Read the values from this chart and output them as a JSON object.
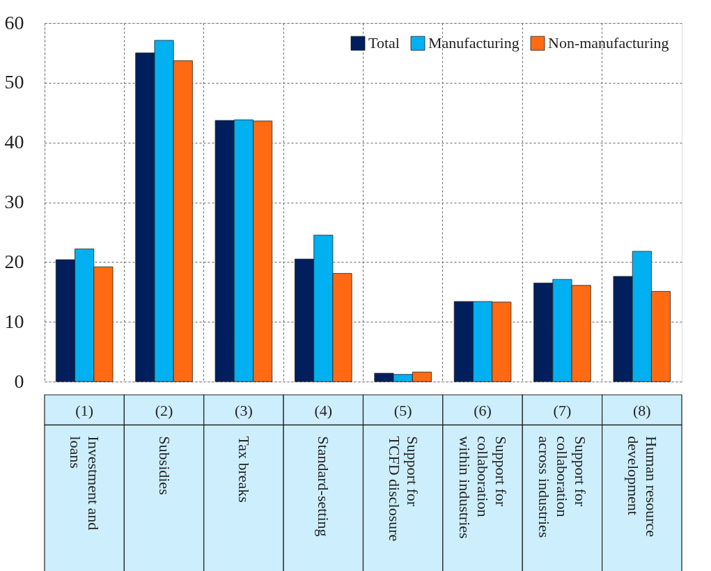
{
  "chart_data": {
    "type": "bar",
    "categories": [
      "(1) Investment and\nloans",
      "(2) Subsidies",
      "(3) Tax breaks",
      "(4) Standard-setting",
      "(5) Support for\nTCFD disclosure",
      "(6) Support for\ncollaboration\nwithin industries",
      "(7) Support for\ncollaboration\nacross industries",
      "(8) Human resource\ndevelopment"
    ],
    "series": [
      {
        "name": "Total",
        "color": "#001f5c",
        "values": [
          20.4,
          55.0,
          43.7,
          20.5,
          1.4,
          13.4,
          16.5,
          17.6
        ]
      },
      {
        "name": "Manufacturing",
        "color": "#00b0f0",
        "values": [
          22.2,
          57.1,
          43.8,
          24.5,
          1.2,
          13.4,
          17.1,
          21.8
        ]
      },
      {
        "name": "Non-manufacturing",
        "color": "#ff6a13",
        "values": [
          19.2,
          53.7,
          43.6,
          18.1,
          1.6,
          13.3,
          16.1,
          15.1
        ]
      }
    ],
    "ylim": [
      0,
      60
    ],
    "yticks": [
      0,
      10,
      20,
      30,
      40,
      50,
      60
    ],
    "grid": true,
    "legend": "top right"
  }
}
